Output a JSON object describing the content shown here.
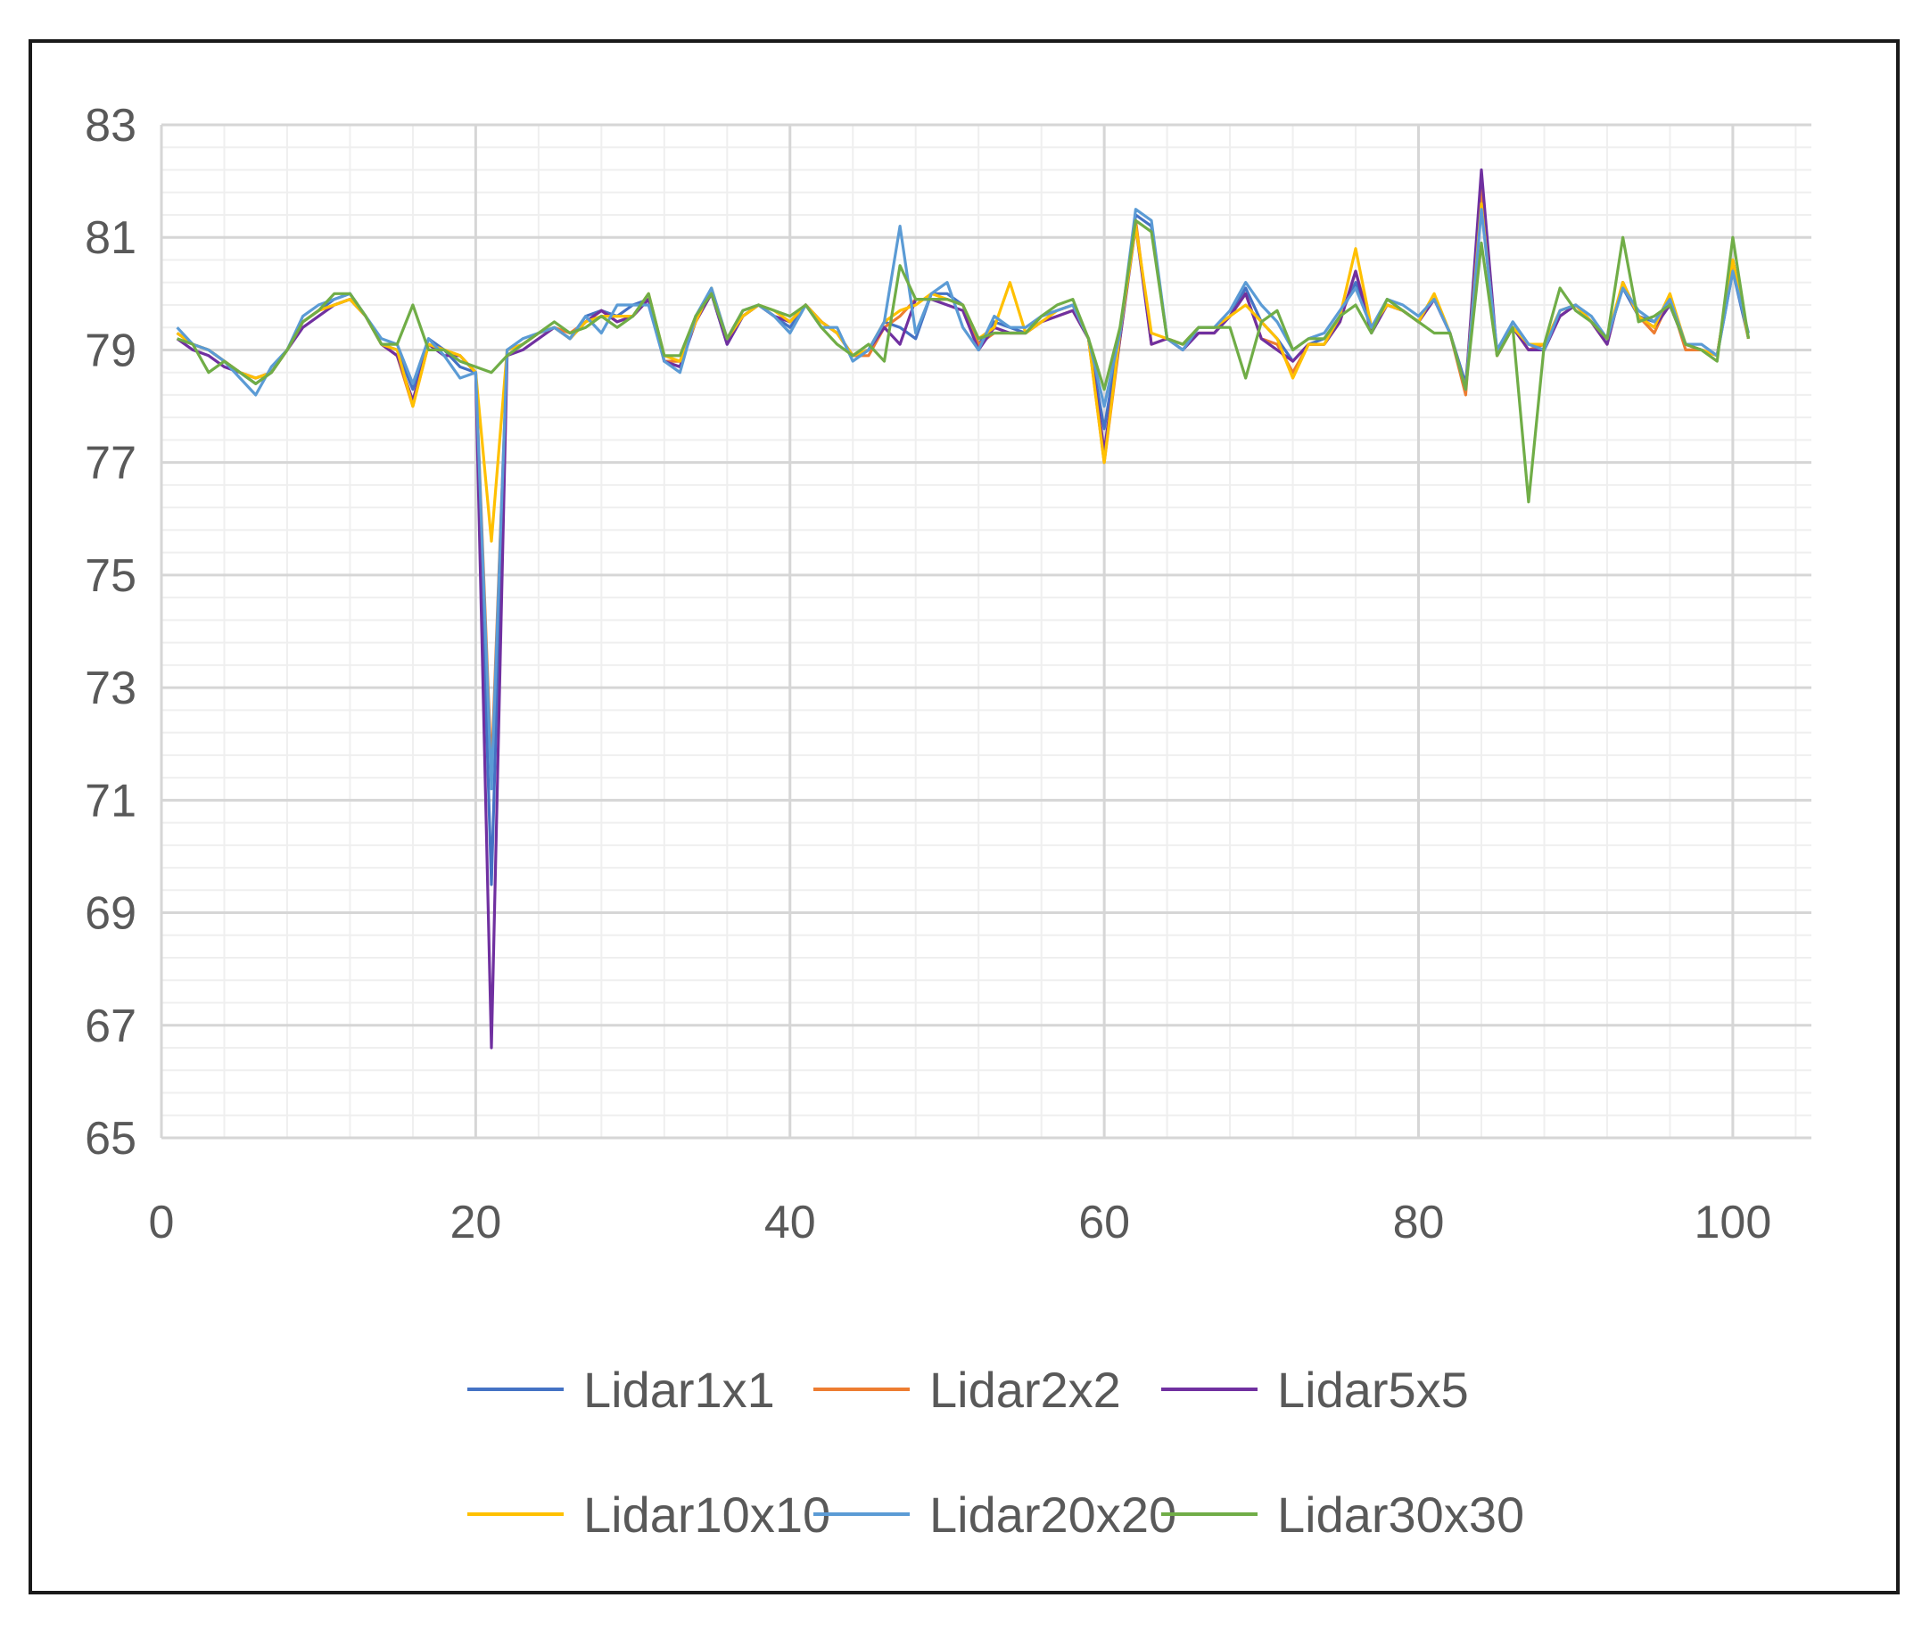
{
  "chart_data": {
    "type": "line",
    "title": "",
    "xlabel": "",
    "ylabel": "",
    "xlim": [
      0,
      105
    ],
    "ylim": [
      65,
      83
    ],
    "x_ticks": [
      0,
      20,
      40,
      60,
      80,
      100
    ],
    "y_ticks": [
      65,
      67,
      69,
      71,
      73,
      75,
      77,
      79,
      81,
      83
    ],
    "grid": "on (major and minor)",
    "legend_position": "bottom",
    "x": [
      1,
      2,
      3,
      4,
      5,
      6,
      7,
      8,
      9,
      10,
      11,
      12,
      13,
      14,
      15,
      16,
      17,
      18,
      19,
      20,
      21,
      22,
      23,
      24,
      25,
      26,
      27,
      28,
      29,
      30,
      31,
      32,
      33,
      34,
      35,
      36,
      37,
      38,
      39,
      40,
      41,
      42,
      43,
      44,
      45,
      46,
      47,
      48,
      49,
      50,
      51,
      52,
      53,
      54,
      55,
      56,
      57,
      58,
      59,
      60,
      61,
      62,
      63,
      64,
      65,
      66,
      67,
      68,
      69,
      70,
      71,
      72,
      73,
      74,
      75,
      76,
      77,
      78,
      79,
      80,
      81,
      82,
      83,
      84,
      85,
      86,
      87,
      88,
      89,
      90,
      91,
      92,
      93,
      94,
      95,
      96,
      97,
      98,
      99,
      100,
      101
    ],
    "series": [
      {
        "name": "Lidar1x1",
        "color": "#4472C4",
        "values": [
          79.3,
          79.1,
          79.0,
          78.8,
          78.6,
          78.4,
          78.6,
          79.0,
          79.5,
          79.7,
          79.9,
          80.0,
          79.6,
          79.1,
          79.0,
          78.3,
          79.2,
          79.0,
          78.7,
          78.6,
          69.5,
          79.0,
          79.1,
          79.3,
          79.4,
          79.2,
          79.6,
          79.7,
          79.6,
          79.8,
          79.9,
          78.8,
          78.7,
          79.6,
          80.0,
          79.1,
          79.6,
          79.8,
          79.6,
          79.4,
          79.8,
          79.5,
          79.3,
          78.9,
          79.0,
          79.5,
          79.4,
          79.2,
          80.0,
          80.0,
          79.8,
          79.1,
          79.5,
          79.4,
          79.3,
          79.6,
          79.7,
          79.8,
          79.2,
          77.6,
          79.3,
          81.4,
          81.2,
          79.2,
          79.1,
          79.4,
          79.4,
          79.6,
          80.1,
          79.5,
          79.2,
          78.8,
          79.1,
          79.2,
          79.6,
          80.2,
          79.4,
          79.8,
          79.7,
          79.5,
          79.9,
          79.3,
          78.4,
          81.6,
          78.9,
          79.5,
          79.1,
          79.1,
          79.6,
          79.8,
          79.5,
          79.2,
          80.1,
          79.6,
          79.5,
          79.8,
          79.1,
          79.0,
          78.9,
          80.4,
          79.2
        ]
      },
      {
        "name": "Lidar2x2",
        "color": "#ED7D31",
        "values": [
          79.3,
          79.1,
          79.0,
          78.8,
          78.6,
          78.5,
          78.6,
          79.0,
          79.5,
          79.7,
          79.8,
          79.9,
          79.6,
          79.1,
          78.9,
          78.0,
          79.1,
          79.0,
          78.9,
          78.6,
          71.5,
          78.9,
          79.1,
          79.3,
          79.4,
          79.3,
          79.5,
          79.7,
          79.5,
          79.6,
          79.9,
          78.8,
          78.8,
          79.5,
          80.0,
          79.2,
          79.6,
          79.8,
          79.6,
          79.5,
          79.8,
          79.5,
          79.3,
          78.9,
          78.9,
          79.4,
          79.6,
          79.9,
          79.9,
          79.9,
          79.8,
          79.1,
          79.3,
          79.3,
          79.3,
          79.5,
          79.6,
          79.7,
          79.2,
          77.0,
          79.2,
          81.3,
          79.1,
          79.2,
          79.1,
          79.3,
          79.3,
          79.6,
          80.0,
          79.2,
          79.1,
          78.6,
          79.1,
          79.1,
          79.5,
          80.4,
          79.4,
          79.8,
          79.7,
          79.5,
          79.9,
          79.3,
          78.2,
          81.9,
          78.9,
          79.4,
          79.0,
          79.1,
          79.6,
          79.8,
          79.5,
          79.1,
          80.2,
          79.6,
          79.3,
          79.9,
          79.0,
          79.0,
          78.9,
          80.6,
          79.2
        ]
      },
      {
        "name": "Lidar5x5",
        "color": "#7030A0",
        "values": [
          79.2,
          79.0,
          78.9,
          78.7,
          78.6,
          78.5,
          78.6,
          79.0,
          79.4,
          79.6,
          79.8,
          79.9,
          79.6,
          79.1,
          78.9,
          78.1,
          79.1,
          78.9,
          78.9,
          78.6,
          66.6,
          78.9,
          79.0,
          79.2,
          79.4,
          79.2,
          79.5,
          79.7,
          79.5,
          79.6,
          79.9,
          78.8,
          78.7,
          79.5,
          80.0,
          79.1,
          79.6,
          79.8,
          79.6,
          79.5,
          79.8,
          79.5,
          79.3,
          78.9,
          79.0,
          79.4,
          79.1,
          79.9,
          79.9,
          79.8,
          79.7,
          79.0,
          79.4,
          79.3,
          79.3,
          79.5,
          79.6,
          79.7,
          79.2,
          77.2,
          79.2,
          81.2,
          79.1,
          79.2,
          79.0,
          79.3,
          79.3,
          79.6,
          80.0,
          79.2,
          79.0,
          78.8,
          79.1,
          79.1,
          79.5,
          80.4,
          79.3,
          79.8,
          79.7,
          79.5,
          79.9,
          79.3,
          78.3,
          82.2,
          78.9,
          79.4,
          79.0,
          79.0,
          79.6,
          79.8,
          79.5,
          79.1,
          80.2,
          79.6,
          79.4,
          79.8,
          79.1,
          79.0,
          78.9,
          80.6,
          79.2
        ]
      },
      {
        "name": "Lidar10x10",
        "color": "#FFC000",
        "values": [
          79.3,
          79.1,
          79.0,
          78.8,
          78.6,
          78.5,
          78.6,
          79.0,
          79.5,
          79.7,
          79.8,
          79.9,
          79.6,
          79.1,
          79.0,
          78.0,
          79.1,
          79.0,
          78.9,
          78.6,
          75.6,
          79.0,
          79.1,
          79.3,
          79.4,
          79.2,
          79.5,
          79.6,
          79.6,
          79.6,
          80.0,
          78.9,
          78.8,
          79.5,
          80.1,
          79.2,
          79.6,
          79.8,
          79.7,
          79.5,
          79.8,
          79.5,
          79.3,
          78.9,
          79.0,
          79.5,
          79.7,
          79.8,
          80.0,
          79.9,
          79.8,
          79.2,
          79.4,
          80.2,
          79.3,
          79.5,
          79.7,
          79.8,
          79.2,
          77.0,
          79.3,
          81.2,
          79.3,
          79.2,
          79.1,
          79.4,
          79.4,
          79.6,
          79.8,
          79.5,
          79.2,
          78.5,
          79.1,
          79.1,
          79.6,
          80.8,
          79.4,
          79.8,
          79.7,
          79.5,
          80.0,
          79.3,
          78.3,
          81.6,
          78.9,
          79.4,
          79.1,
          79.1,
          79.7,
          79.8,
          79.5,
          79.2,
          80.2,
          79.6,
          79.4,
          80.0,
          79.1,
          79.0,
          78.9,
          80.6,
          79.2
        ]
      },
      {
        "name": "Lidar20x20",
        "color": "#5B9BD5",
        "values": [
          79.4,
          79.1,
          79.0,
          78.8,
          78.5,
          78.2,
          78.7,
          79.0,
          79.6,
          79.8,
          79.9,
          80.0,
          79.6,
          79.2,
          79.1,
          78.4,
          79.2,
          78.9,
          78.5,
          78.6,
          71.2,
          79.0,
          79.2,
          79.3,
          79.4,
          79.2,
          79.6,
          79.3,
          79.8,
          79.8,
          79.8,
          78.8,
          78.6,
          79.6,
          80.1,
          79.2,
          79.7,
          79.8,
          79.6,
          79.3,
          79.8,
          79.4,
          79.4,
          78.8,
          79.0,
          79.5,
          81.2,
          79.3,
          80.0,
          80.2,
          79.4,
          79.0,
          79.6,
          79.4,
          79.4,
          79.6,
          79.7,
          79.8,
          79.2,
          78.0,
          79.3,
          81.5,
          81.3,
          79.2,
          79.0,
          79.4,
          79.4,
          79.7,
          80.2,
          79.8,
          79.5,
          79.0,
          79.2,
          79.3,
          79.7,
          80.1,
          79.4,
          79.9,
          79.8,
          79.6,
          79.9,
          79.3,
          78.3,
          81.5,
          79.0,
          79.5,
          79.1,
          79.0,
          79.7,
          79.8,
          79.6,
          79.2,
          80.1,
          79.7,
          79.5,
          79.9,
          79.1,
          79.1,
          78.9,
          80.4,
          79.3
        ]
      },
      {
        "name": "Lidar30x30",
        "color": "#70AD47",
        "values": [
          79.2,
          79.1,
          78.6,
          78.8,
          78.6,
          78.4,
          78.6,
          79.0,
          79.5,
          79.7,
          80.0,
          80.0,
          79.6,
          79.1,
          79.1,
          79.8,
          79.0,
          79.0,
          78.8,
          78.7,
          78.6,
          78.9,
          79.1,
          79.3,
          79.5,
          79.3,
          79.4,
          79.6,
          79.4,
          79.6,
          80.0,
          78.9,
          78.9,
          79.6,
          80.0,
          79.2,
          79.7,
          79.8,
          79.7,
          79.6,
          79.8,
          79.4,
          79.1,
          78.9,
          79.1,
          78.8,
          80.5,
          79.9,
          79.9,
          79.9,
          79.8,
          79.2,
          79.3,
          79.3,
          79.3,
          79.6,
          79.8,
          79.9,
          79.2,
          78.3,
          79.4,
          81.3,
          81.1,
          79.2,
          79.1,
          79.4,
          79.4,
          79.4,
          78.5,
          79.5,
          79.7,
          79.0,
          79.2,
          79.2,
          79.6,
          79.8,
          79.3,
          79.9,
          79.7,
          79.5,
          79.3,
          79.3,
          78.3,
          80.9,
          78.9,
          79.4,
          76.3,
          79.1,
          80.1,
          79.7,
          79.5,
          79.2,
          81.0,
          79.5,
          79.6,
          79.8,
          79.1,
          79.0,
          78.8,
          81.0,
          79.2
        ]
      }
    ]
  }
}
